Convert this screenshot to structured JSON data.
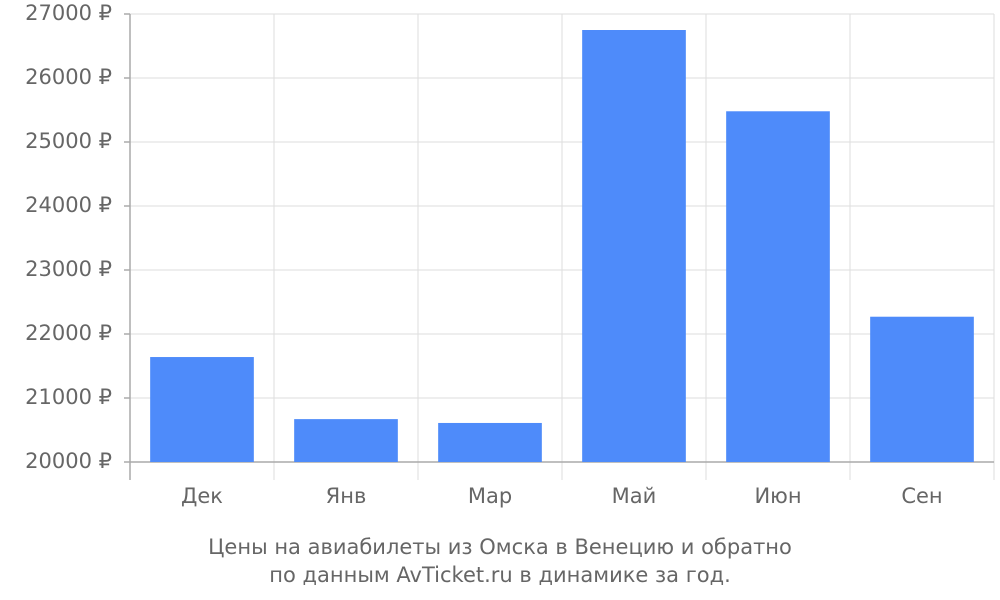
{
  "chart_data": {
    "type": "bar",
    "title_lines": [
      "Цены на авиабилеты из Омска в Венецию и обратно",
      "по данным AvTicket.ru в динамике за год."
    ],
    "categories": [
      "Дек",
      "Янв",
      "Мар",
      "Май",
      "Июн",
      "Сен"
    ],
    "values": [
      21640,
      20670,
      20610,
      26750,
      25480,
      22270
    ],
    "color": "#4e8bfa",
    "ylim": [
      20000,
      27000
    ],
    "yticks": [
      {
        "value": 20000,
        "label": "20000 ₽"
      },
      {
        "value": 21000,
        "label": "21000 ₽"
      },
      {
        "value": 22000,
        "label": "22000 ₽"
      },
      {
        "value": 23000,
        "label": "23000 ₽"
      },
      {
        "value": 24000,
        "label": "24000 ₽"
      },
      {
        "value": 25000,
        "label": "25000 ₽"
      },
      {
        "value": 26000,
        "label": "26000 ₽"
      },
      {
        "value": 27000,
        "label": "27000 ₽"
      }
    ],
    "grid": true
  }
}
